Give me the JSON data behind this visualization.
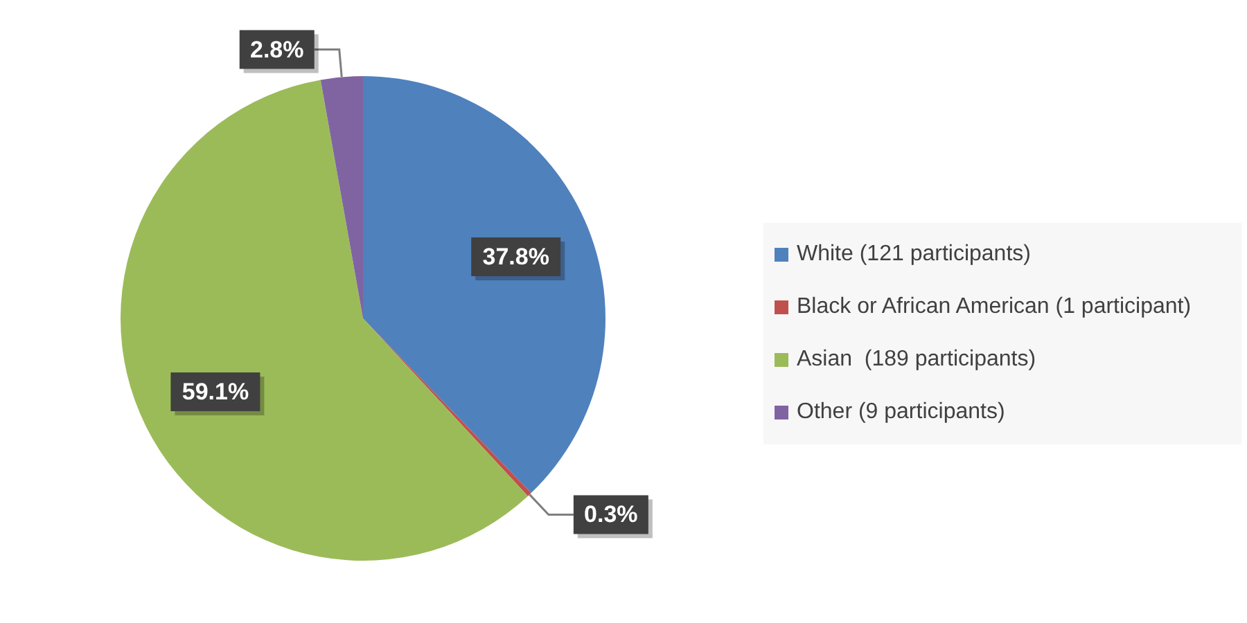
{
  "chart_data": {
    "type": "pie",
    "categories": [
      "White (121 participants)",
      "Black or African American (1 participant)",
      "Asian  (189 participants)",
      "Other (9 participants)"
    ],
    "values": [
      37.8,
      0.3,
      59.1,
      2.8
    ],
    "colors": [
      "#4f81bd",
      "#c0504d",
      "#9bbb59",
      "#8064a2"
    ],
    "value_labels": [
      "37.8%",
      "0.3%",
      "59.1%",
      "2.8%"
    ],
    "legend": "right"
  }
}
